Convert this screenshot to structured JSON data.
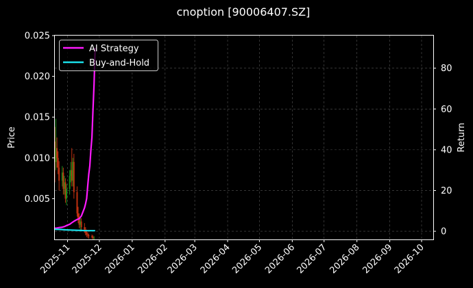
{
  "chart_data": {
    "type": "line",
    "title": "cnoption [90006407.SZ]",
    "xlabel": "",
    "ylabel_left": "Price",
    "ylabel_right": "Return",
    "x_ticks": [
      "2025-11",
      "2025-12",
      "2026-01",
      "2026-02",
      "2026-03",
      "2026-04",
      "2026-05",
      "2026-06",
      "2026-07",
      "2026-08",
      "2026-09",
      "2026-10"
    ],
    "xlim": [
      "2025-10-20",
      "2026-10-12"
    ],
    "ylim_left": [
      0.0,
      0.025
    ],
    "y_ticks_left": [
      "0.005",
      "0.010",
      "0.015",
      "0.020",
      "0.025"
    ],
    "ylim_right": [
      -4,
      96
    ],
    "y_ticks_right": [
      "0",
      "20",
      "40",
      "60",
      "80"
    ],
    "grid": true,
    "legend_position": "top-left",
    "colors": {
      "background": "#000000",
      "up": "#1a8f1a",
      "down": "#c03010",
      "ai_strategy": "#ff1aff",
      "buy_and_hold": "#1ae0ea",
      "grid": "#555555",
      "text": "#ffffff"
    },
    "series": [
      {
        "name": "AI Strategy",
        "axis": "right",
        "x": [
          "2025-10-20",
          "2025-10-22",
          "2025-10-24",
          "2025-10-27",
          "2025-10-29",
          "2025-10-31",
          "2025-11-03",
          "2025-11-05",
          "2025-11-07",
          "2025-11-10",
          "2025-11-12",
          "2025-11-14",
          "2025-11-17",
          "2025-11-18",
          "2025-11-19",
          "2025-11-20",
          "2025-11-21",
          "2025-11-22",
          "2025-11-23",
          "2025-11-24",
          "2025-11-25",
          "2025-11-26",
          "2025-11-27"
        ],
        "values": [
          1.5,
          1.6,
          1.8,
          2.0,
          2.3,
          2.8,
          3.4,
          4.2,
          4.9,
          5.8,
          6.2,
          7.5,
          11.5,
          13.5,
          16.0,
          22.0,
          28.0,
          32.0,
          40.0,
          46.0,
          60.0,
          72.0,
          90.0
        ]
      },
      {
        "name": "Buy-and-Hold",
        "axis": "right",
        "x": [
          "2025-10-20",
          "2025-10-25",
          "2025-10-30",
          "2025-11-04",
          "2025-11-09",
          "2025-11-14",
          "2025-11-19",
          "2025-11-24",
          "2025-11-27"
        ],
        "values": [
          1.0,
          0.9,
          0.7,
          0.6,
          0.5,
          0.4,
          0.3,
          0.3,
          0.3
        ]
      }
    ],
    "candles": {
      "axis": "left",
      "x": [
        "2025-10-20",
        "2025-10-21",
        "2025-10-22",
        "2025-10-23",
        "2025-10-24",
        "2025-10-27",
        "2025-10-28",
        "2025-10-29",
        "2025-10-30",
        "2025-10-31",
        "2025-11-03",
        "2025-11-04",
        "2025-11-05",
        "2025-11-06",
        "2025-11-07",
        "2025-11-10",
        "2025-11-11",
        "2025-11-12",
        "2025-11-13",
        "2025-11-14",
        "2025-11-17",
        "2025-11-18",
        "2025-11-19",
        "2025-11-20",
        "2025-11-21",
        "2025-11-24",
        "2025-11-25",
        "2025-11-26"
      ],
      "open": [
        0.012,
        0.0095,
        0.0112,
        0.01,
        0.0088,
        0.0072,
        0.0082,
        0.0062,
        0.007,
        0.005,
        0.0062,
        0.0078,
        0.0085,
        0.0072,
        0.0095,
        0.0058,
        0.0032,
        0.0026,
        0.0018,
        0.0022,
        0.0015,
        0.0012,
        0.0008,
        0.0006,
        0.0005,
        0.0004,
        0.0003,
        0.0002
      ],
      "close": [
        0.0095,
        0.0112,
        0.01,
        0.0088,
        0.0072,
        0.0082,
        0.0062,
        0.007,
        0.005,
        0.0062,
        0.0078,
        0.0085,
        0.0072,
        0.0095,
        0.0058,
        0.0032,
        0.0026,
        0.0018,
        0.0022,
        0.0015,
        0.0012,
        0.0008,
        0.0006,
        0.0005,
        0.0004,
        0.0003,
        0.0002,
        0.0002
      ],
      "high": [
        0.0138,
        0.0148,
        0.0125,
        0.0108,
        0.0096,
        0.009,
        0.0088,
        0.0078,
        0.0075,
        0.0068,
        0.0085,
        0.0095,
        0.0112,
        0.01,
        0.0105,
        0.0065,
        0.004,
        0.0032,
        0.0028,
        0.0026,
        0.002,
        0.0015,
        0.0012,
        0.0009,
        0.0007,
        0.0006,
        0.0005,
        0.0004
      ],
      "low": [
        0.007,
        0.0085,
        0.0088,
        0.008,
        0.006,
        0.0065,
        0.0055,
        0.0055,
        0.0045,
        0.0042,
        0.0055,
        0.007,
        0.0065,
        0.0065,
        0.005,
        0.0028,
        0.002,
        0.0014,
        0.0012,
        0.001,
        0.0008,
        0.0005,
        0.0003,
        0.0002,
        0.0001,
        0.0001,
        0.0,
        0.0
      ]
    }
  }
}
